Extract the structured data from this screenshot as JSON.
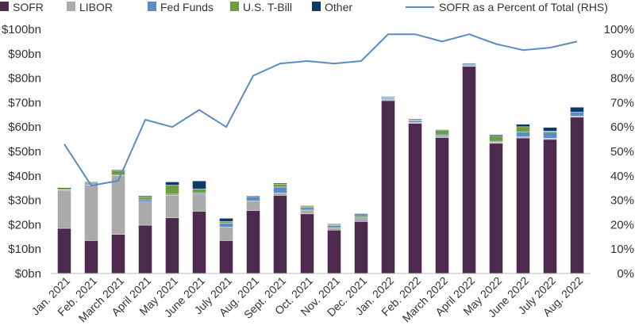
{
  "chart_data": {
    "type": "bar",
    "stacked": true,
    "categories": [
      "Jan. 2021",
      "Feb. 2021",
      "March 2021",
      "April 2021",
      "May 2021",
      "June 2021",
      "July 2021",
      "Aug. 2021",
      "Sept. 2021",
      "Oct. 2021",
      "Nov. 2021",
      "Dec. 2021",
      "Jan. 2022",
      "Feb. 2022",
      "March 2022",
      "April 2022",
      "May 2022",
      "June 2022",
      "July 2022",
      "Aug. 2022"
    ],
    "series": [
      {
        "name": "SOFR",
        "color": "#4e2a4f",
        "values": [
          18.5,
          13.5,
          16,
          19.8,
          22.8,
          25.5,
          13.5,
          25.8,
          32,
          24.4,
          17.8,
          21.3,
          70.8,
          61.5,
          55.7,
          84.8,
          53.3,
          55.5,
          54.9,
          64
        ]
      },
      {
        "name": "LIBOR",
        "color": "#aaaaaa",
        "values": [
          15.5,
          22.8,
          24,
          9.5,
          9.3,
          7,
          5.5,
          4,
          1,
          1.6,
          1,
          1.5,
          0.6,
          0.4,
          0.5,
          0.3,
          0.5,
          0.5,
          0.5,
          0.5
        ]
      },
      {
        "name": "Fed Funds",
        "color": "#5b8cc4",
        "values": [
          0.4,
          0.4,
          0.3,
          0.9,
          0.4,
          0.6,
          1.6,
          1.5,
          2.4,
          1,
          0.8,
          0.6,
          0.4,
          0.6,
          0.6,
          0.5,
          0.4,
          2,
          2.5,
          1.6
        ]
      },
      {
        "name": "U.S. T-Bill",
        "color": "#6f9c3c",
        "values": [
          0.3,
          0.5,
          1.9,
          1.2,
          3.7,
          1.5,
          0.7,
          0,
          1.2,
          0.6,
          0.4,
          0.7,
          0.2,
          0.4,
          1.8,
          0.2,
          2.1,
          2.1,
          0.4,
          0
        ]
      },
      {
        "name": "Other",
        "color": "#0b3a6b",
        "values": [
          0.4,
          0.3,
          0.3,
          0.4,
          1.3,
          3.3,
          1.3,
          0.4,
          0.4,
          0.2,
          0.3,
          0.4,
          0.3,
          0.3,
          0.3,
          0.3,
          0.5,
          1,
          1.5,
          2
        ]
      }
    ],
    "line_series": {
      "name": "SOFR as a Percent of Total (RHS)",
      "color": "#5b8cc4",
      "values": [
        53,
        36,
        38,
        63,
        60,
        67,
        60,
        81,
        86,
        87,
        86,
        87,
        98,
        98,
        95,
        98,
        94,
        91.5,
        92.5,
        95
      ]
    },
    "y_left": {
      "min": 0,
      "max": 100,
      "step": 10,
      "tick_labels": [
        "$0bn",
        "$10bn",
        "$20bn",
        "$30bn",
        "$40bn",
        "$50bn",
        "$60bn",
        "$70bn",
        "$80bn",
        "$90bn",
        "$100bn"
      ]
    },
    "y_right": {
      "min": 0,
      "max": 100,
      "step": 10,
      "tick_labels": [
        "0%",
        "10%",
        "20%",
        "30%",
        "40%",
        "50%",
        "60%",
        "70%",
        "80%",
        "90%",
        "100%"
      ]
    },
    "legend": {
      "position": "top",
      "items": [
        "SOFR",
        "LIBOR",
        "Fed Funds",
        "U.S. T-Bill",
        "Other",
        "SOFR as a Percent of Total (RHS)"
      ]
    },
    "grid": false,
    "title": "",
    "xlabel": "",
    "ylabel": ""
  }
}
